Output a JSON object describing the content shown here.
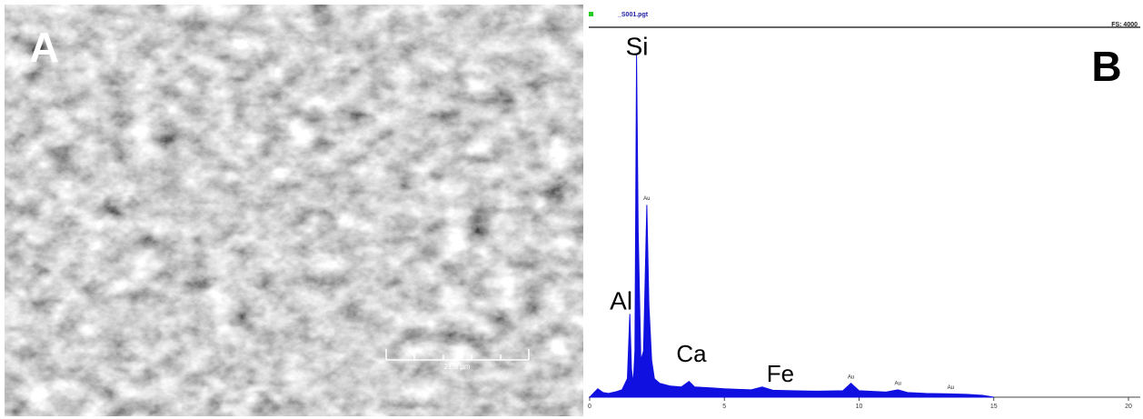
{
  "panel_a": {
    "label": "A",
    "scale_bar": "21.3 µm"
  },
  "panel_b": {
    "label": "B",
    "file_name": "_S001.pgt",
    "full_scale": "FS: 4000"
  },
  "chart_data": {
    "type": "area",
    "color": "#1010e0",
    "x": [
      0,
      0.2,
      0.3,
      0.5,
      0.7,
      1.0,
      1.2,
      1.4,
      1.49,
      1.55,
      1.62,
      1.68,
      1.74,
      1.8,
      1.9,
      2.0,
      2.12,
      2.2,
      2.3,
      2.4,
      2.6,
      3.0,
      3.4,
      3.69,
      3.9,
      4.5,
      5.0,
      5.5,
      6.0,
      6.4,
      6.8,
      7.5,
      8.5,
      9.4,
      9.7,
      10.0,
      11.0,
      11.44,
      11.8,
      12.5,
      13.4,
      14.0,
      14.6,
      15.0
    ],
    "values": [
      0,
      60,
      90,
      50,
      40,
      60,
      80,
      200,
      900,
      300,
      150,
      500,
      3700,
      1800,
      400,
      500,
      2080,
      1000,
      400,
      200,
      150,
      120,
      110,
      170,
      110,
      100,
      90,
      85,
      80,
      110,
      75,
      70,
      65,
      70,
      150,
      70,
      55,
      80,
      50,
      40,
      35,
      30,
      20,
      0
    ],
    "xlim": [
      0,
      20
    ],
    "ylim": [
      0,
      4000
    ],
    "xticks": [
      0,
      5,
      10,
      15,
      20
    ],
    "annotations": [
      {
        "label": "Si",
        "x": 1.74
      },
      {
        "label": "Al",
        "x": 1.49
      },
      {
        "label": "Ca",
        "x": 3.69
      },
      {
        "label": "Fe",
        "x": 6.4
      },
      {
        "label": "Au",
        "x": 2.12
      },
      {
        "label": "Au",
        "x": 9.7
      },
      {
        "label": "Au",
        "x": 11.44
      },
      {
        "label": "Au",
        "x": 13.4
      }
    ]
  }
}
